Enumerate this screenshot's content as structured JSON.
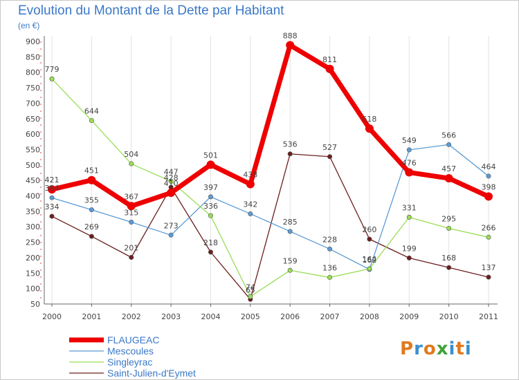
{
  "header": {
    "title": "Evolution du Montant de la Dette par Habitant",
    "subtitle": "(en €)"
  },
  "logo": {
    "text": "Proxiti",
    "colors": [
      "#e07a1f",
      "#3a8fd0",
      "#e07a1f",
      "#3fa33a",
      "#3a8fd0",
      "#e07a1f",
      "#3a8fd0"
    ]
  },
  "chart_data": {
    "type": "line",
    "title": "Evolution du Montant de la Dette par Habitant",
    "subtitle": "(en €)",
    "xlabel": "",
    "ylabel": "",
    "x": [
      "2000",
      "2001",
      "2002",
      "2003",
      "2004",
      "2005",
      "2006",
      "2007",
      "2008",
      "2009",
      "2010",
      "2011"
    ],
    "ylim": [
      50,
      900
    ],
    "yticks": [
      50,
      100,
      150,
      200,
      250,
      300,
      350,
      400,
      450,
      500,
      550,
      600,
      650,
      700,
      750,
      800,
      850,
      900
    ],
    "grid": "vertical",
    "legend_position": "bottom-left",
    "series": [
      {
        "name": "FLAUGEAC",
        "color": "#ee0000",
        "values": [
          421,
          451,
          367,
          410,
          501,
          438,
          888,
          811,
          618,
          476,
          457,
          398
        ]
      },
      {
        "name": "Mescoules",
        "color": "#5b9bd5",
        "values": [
          394,
          355,
          315,
          273,
          397,
          342,
          285,
          228,
          162,
          549,
          566,
          464
        ]
      },
      {
        "name": "Singleyrac",
        "color": "#99dd55",
        "values": [
          779,
          644,
          504,
          447,
          336,
          74,
          159,
          136,
          164,
          331,
          295,
          266
        ]
      },
      {
        "name": "Saint-Julien-d'Eymet",
        "color": "#6b1e1e",
        "values": [
          334,
          269,
          201,
          428,
          218,
          65,
          536,
          527,
          260,
          199,
          168,
          137
        ]
      }
    ],
    "data_labels": [
      [
        "421",
        "451",
        "367",
        "410",
        "501",
        "438",
        "888",
        "811",
        "618",
        "476",
        "457",
        "398"
      ],
      [
        "394",
        "355",
        "315",
        "273",
        "397",
        "342",
        "285",
        "228",
        "162",
        "549",
        "566",
        "464"
      ],
      [
        "779",
        "644",
        "504",
        "447",
        "336",
        "74",
        "159",
        "136",
        "164",
        "331",
        "295",
        "266"
      ],
      [
        "334",
        "269",
        "201",
        "428",
        "218",
        "65",
        "536",
        "527",
        "260",
        "199",
        "168",
        "137"
      ]
    ]
  }
}
